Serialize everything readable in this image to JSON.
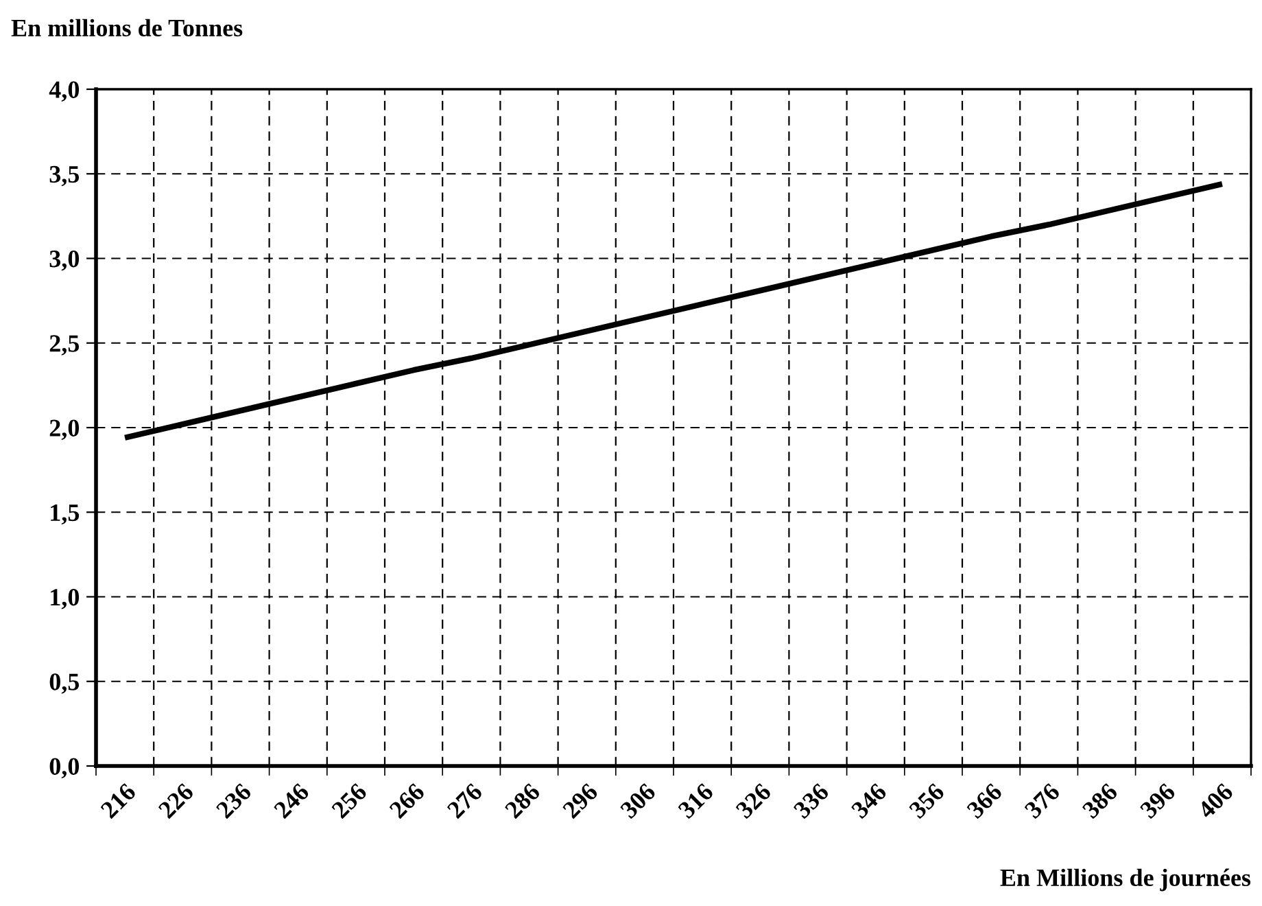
{
  "chart_data": {
    "type": "line",
    "ylabel": "En millions de Tonnes",
    "xlabel": "En Millions de journées",
    "categories": [
      "216",
      "226",
      "236",
      "246",
      "256",
      "266",
      "276",
      "286",
      "296",
      "306",
      "316",
      "326",
      "336",
      "346",
      "356",
      "366",
      "376",
      "386",
      "396",
      "406"
    ],
    "series": [
      {
        "color": "#000000",
        "values": [
          1.94,
          2.02,
          2.1,
          2.18,
          2.26,
          2.34,
          2.41,
          2.49,
          2.57,
          2.65,
          2.73,
          2.81,
          2.89,
          2.97,
          3.05,
          3.13,
          3.2,
          3.28,
          3.36,
          3.44
        ]
      }
    ],
    "ylim": [
      0,
      4
    ],
    "yticks": [
      {
        "value": 0,
        "label": "0,0"
      },
      {
        "value": 0.5,
        "label": "0,5"
      },
      {
        "value": 1,
        "label": "1,0"
      },
      {
        "value": 1.5,
        "label": "1,5"
      },
      {
        "value": 2,
        "label": "2,0"
      },
      {
        "value": 2.5,
        "label": "2,5"
      },
      {
        "value": 3,
        "label": "3,0"
      },
      {
        "value": 3.5,
        "label": "3,5"
      },
      {
        "value": 4,
        "label": "4,0"
      }
    ],
    "grid": true,
    "marker": "none",
    "line_style": "solid"
  }
}
